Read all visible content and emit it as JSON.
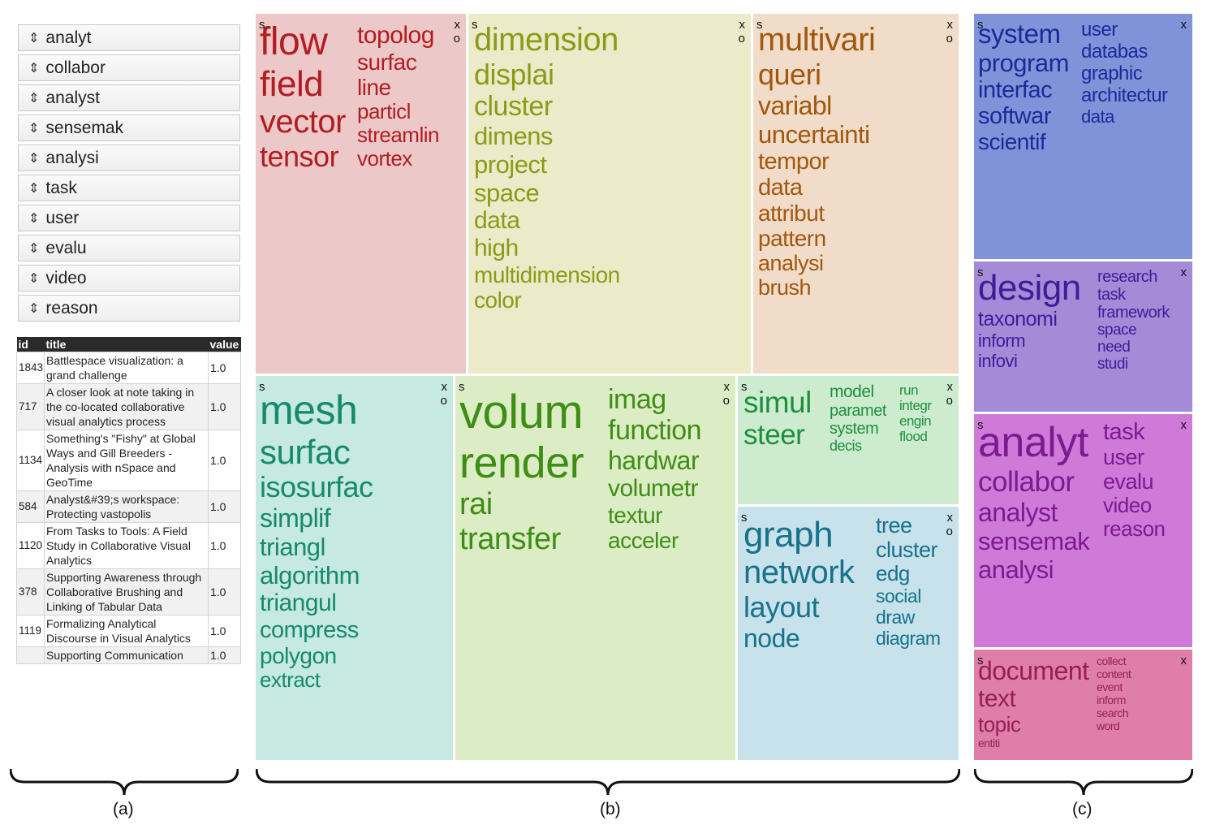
{
  "keyword_list": [
    "analyt",
    "collabor",
    "analyst",
    "sensemak",
    "analysi",
    "task",
    "user",
    "evalu",
    "video",
    "reason"
  ],
  "keyword_arrow_icon": "up-down-arrows-icon",
  "doc_table": {
    "columns": [
      "id",
      "title",
      "value"
    ],
    "rows": [
      {
        "id": "1843",
        "title": "Battlespace visualization: a grand challenge",
        "value": "1.0"
      },
      {
        "id": "717",
        "title": "A closer look at note taking in the co-located collaborative visual analytics process",
        "value": "1.0"
      },
      {
        "id": "1134",
        "title": "Something's \"Fishy\" at Global Ways and Gill Breeders - Analysis with nSpace and GeoTime",
        "value": "1.0"
      },
      {
        "id": "584",
        "title": "Analyst&#39;s workspace: Protecting vastopolis",
        "value": "1.0"
      },
      {
        "id": "1120",
        "title": "From Tasks to Tools: A Field Study in Collaborative Visual Analytics",
        "value": "1.0"
      },
      {
        "id": "378",
        "title": "Supporting Awareness through Collaborative Brushing and Linking of Tabular Data",
        "value": "1.0"
      },
      {
        "id": "1119",
        "title": "Formalizing Analytical Discourse in Visual Analytics",
        "value": "1.0"
      },
      {
        "id": "",
        "title": "Supporting Communication",
        "value": "1.0"
      }
    ]
  },
  "tile_controls": {
    "s": "s",
    "x": "x",
    "o": "o"
  },
  "tiles": [
    {
      "name": "flow",
      "bg": "#ecc8c8",
      "color": "#b01d22",
      "columns": [
        [
          "flow",
          "field",
          "vector",
          "tensor"
        ],
        [
          "topolog",
          "surfac",
          "line",
          "particl",
          "streamlin",
          "vortex"
        ]
      ]
    },
    {
      "name": "dimension",
      "bg": "#ecebc9",
      "color": "#8a9b17",
      "columns": [
        [
          "dimension",
          "displai",
          "cluster",
          "dimens",
          "project",
          "space",
          "data",
          "high",
          "multidimension",
          "color"
        ]
      ]
    },
    {
      "name": "multivari",
      "bg": "#f0dcc8",
      "color": "#a1570e",
      "columns": [
        [
          "multivari",
          "queri",
          "variabl",
          "uncertainti",
          "tempor",
          "data",
          "attribut",
          "pattern",
          "analysi",
          "brush"
        ]
      ]
    },
    {
      "name": "mesh",
      "bg": "#c6e9e1",
      "color": "#168a6c",
      "columns": [
        [
          "mesh",
          "surfac",
          "isosurfac",
          "simplif",
          "triangl",
          "algorithm",
          "triangul",
          "compress",
          "polygon",
          "extract"
        ]
      ]
    },
    {
      "name": "volum",
      "bg": "#dcecc4",
      "color": "#3e8e15",
      "columns": [
        [
          "volum",
          "render",
          "rai",
          "transfer"
        ],
        [
          "imag",
          "function",
          "hardwar",
          "volumetr",
          "textur",
          "acceler"
        ]
      ]
    },
    {
      "name": "simul",
      "bg": "#cdeccf",
      "color": "#1e8f3e",
      "columns": [
        [
          "simul",
          "steer"
        ],
        [
          "model",
          "paramet",
          "system",
          "decis"
        ],
        [
          "run",
          "integr",
          "engin",
          "flood"
        ]
      ]
    },
    {
      "name": "graph",
      "bg": "#c8e2ec",
      "color": "#17728a",
      "columns": [
        [
          "graph",
          "network",
          "layout",
          "node"
        ],
        [
          "tree",
          "cluster",
          "edg",
          "social",
          "draw",
          "diagram"
        ]
      ]
    },
    {
      "name": "system",
      "bg": "#8093d8",
      "color": "#1a2a9a",
      "columns": [
        [
          "system",
          "program",
          "interfac",
          "softwar",
          "scientif"
        ],
        [
          "user",
          "databas",
          "graphic",
          "architectur",
          "data"
        ]
      ]
    },
    {
      "name": "design",
      "bg": "#a38bd8",
      "color": "#3c1d98",
      "columns": [
        [
          "design",
          "taxonomi",
          "inform",
          "infovi"
        ],
        [
          "research",
          "task",
          "framework",
          "space",
          "need",
          "studi"
        ]
      ]
    },
    {
      "name": "analyt",
      "bg": "#cf7ad8",
      "color": "#7c1a90",
      "columns": [
        [
          "analyt",
          "collabor",
          "analyst",
          "sensemak",
          "analysi"
        ],
        [
          "task",
          "user",
          "evalu",
          "video",
          "reason"
        ]
      ]
    },
    {
      "name": "document",
      "bg": "#df7fa9",
      "color": "#951f55",
      "columns": [
        [
          "document",
          "text",
          "topic",
          "entiti"
        ],
        [
          "collect",
          "content",
          "event",
          "inform",
          "search",
          "word"
        ]
      ]
    }
  ],
  "panel_labels": {
    "a": "(a)",
    "b": "(b)",
    "c": "(c)"
  }
}
